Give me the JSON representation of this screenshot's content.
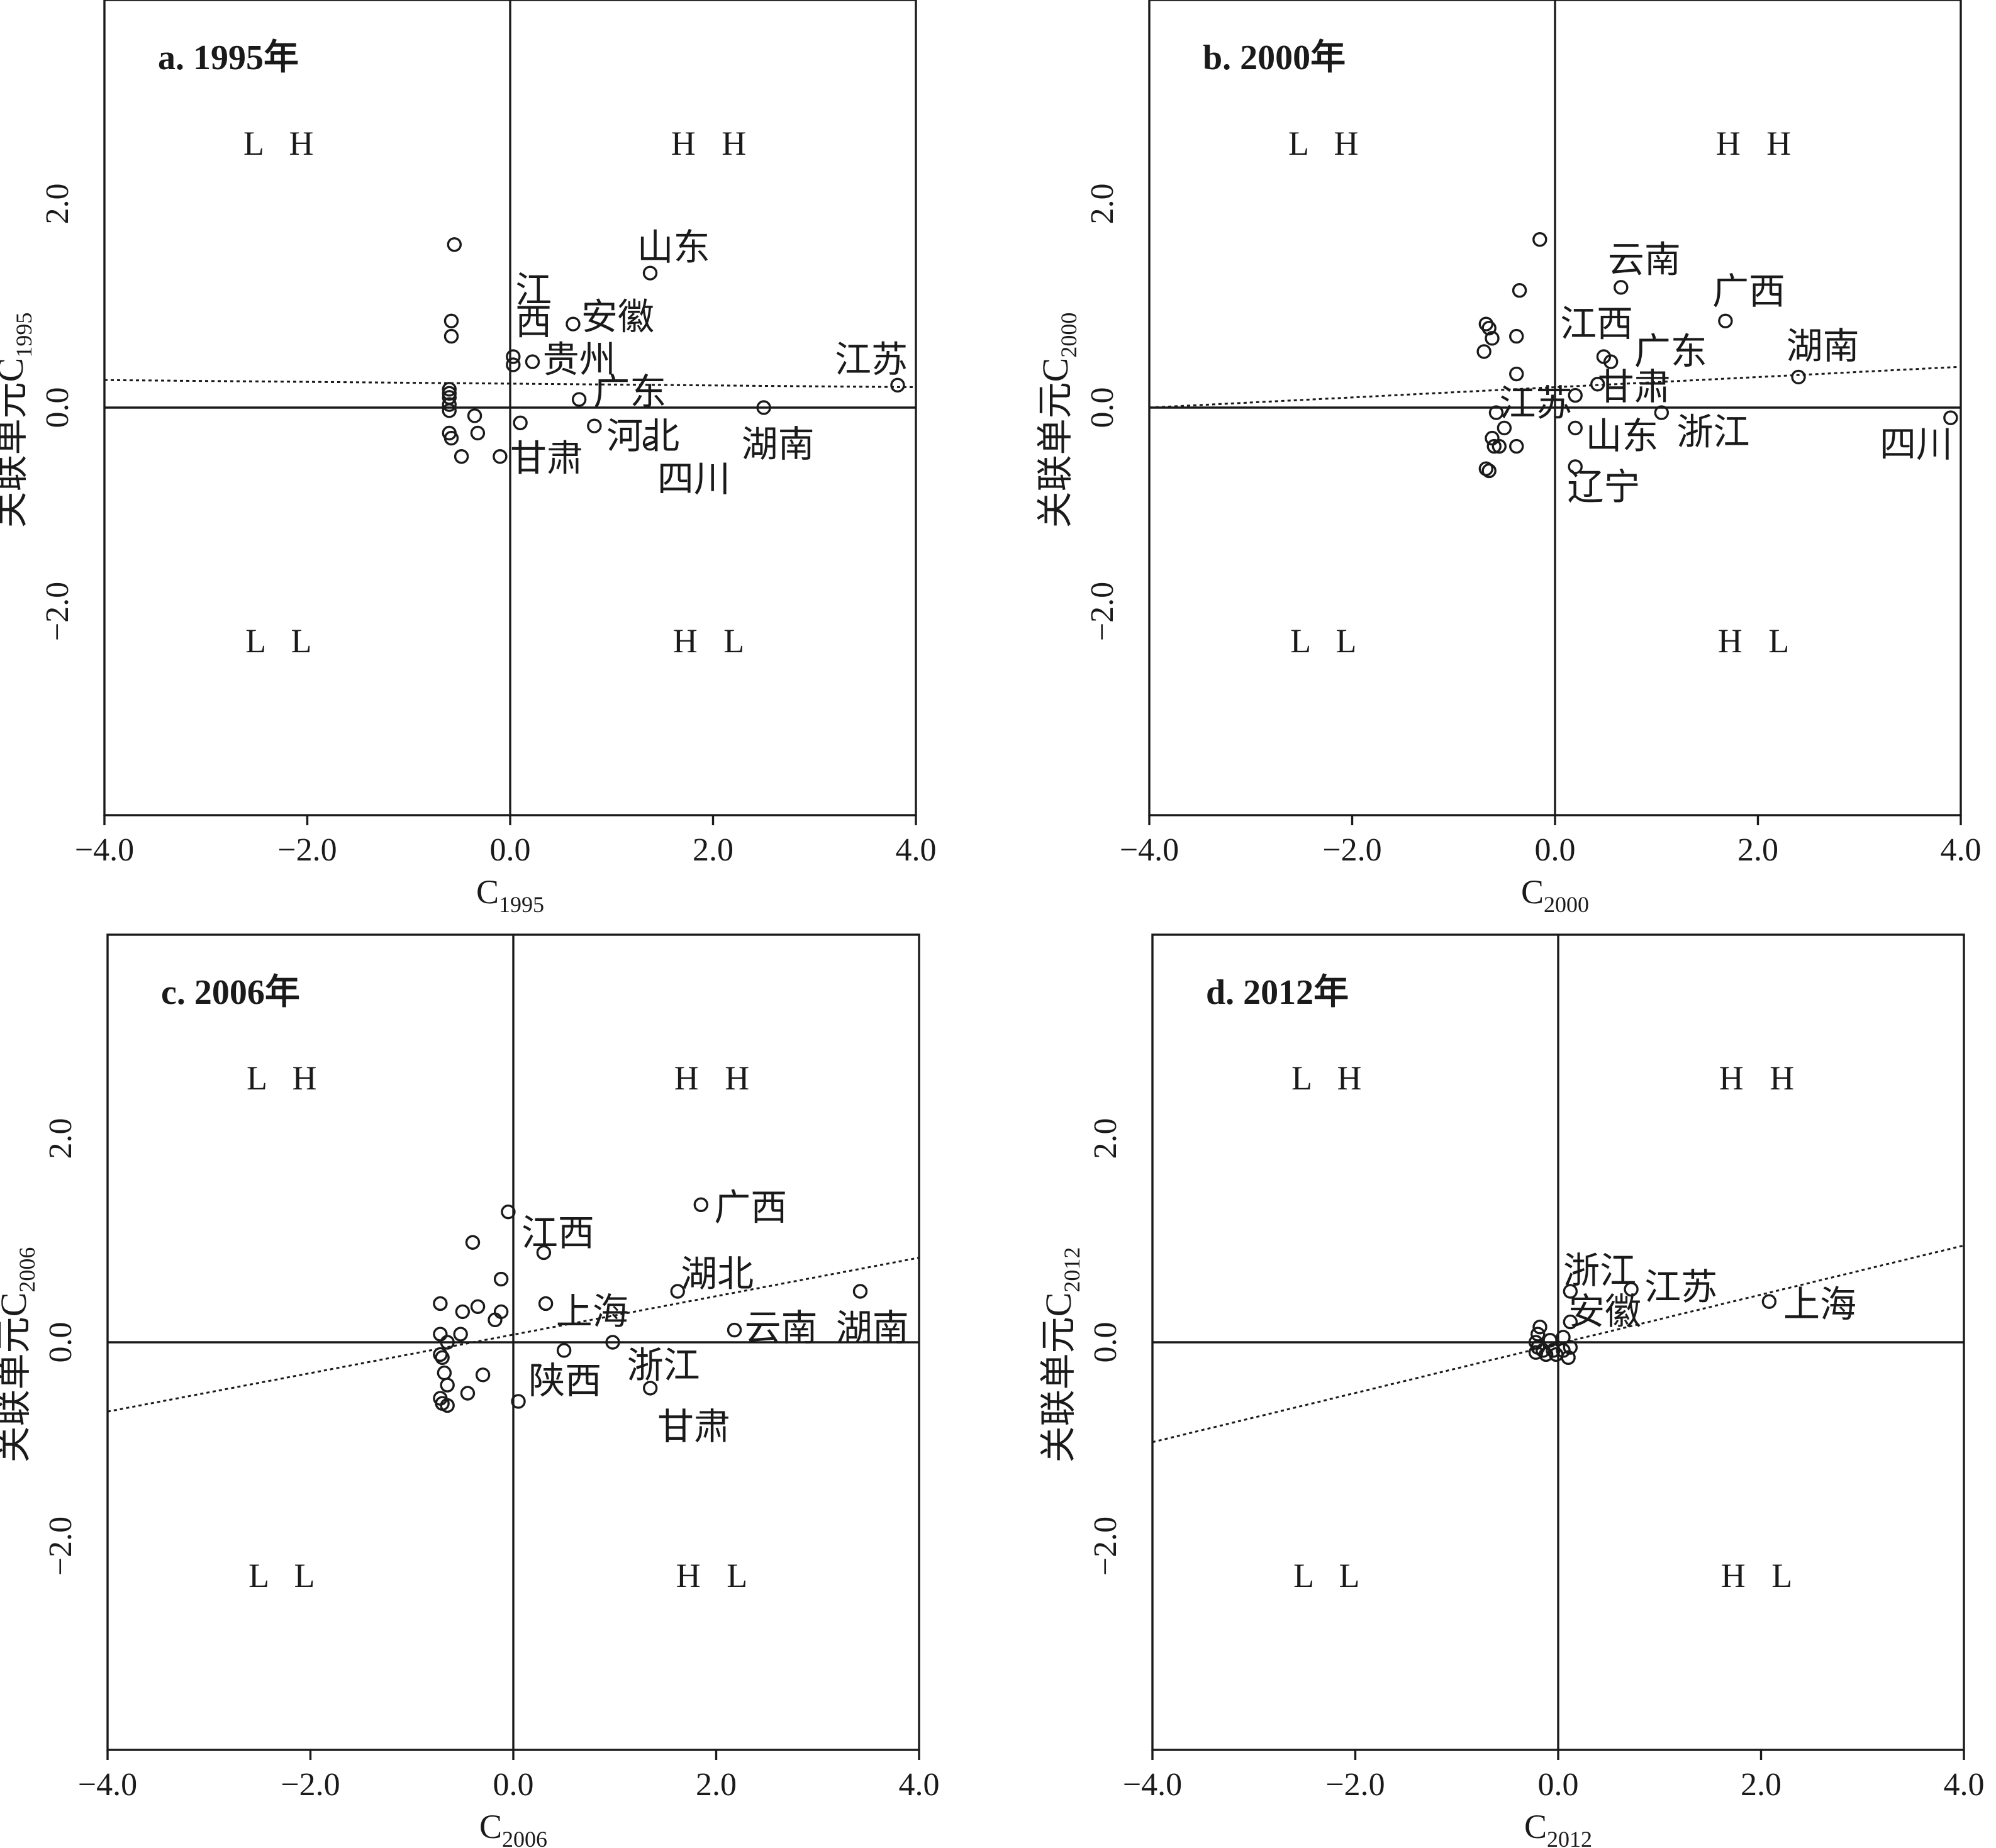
{
  "chart_data": [
    {
      "type": "scatter",
      "title": "a. 1995年",
      "xlabel": "C",
      "xlabel_sub": "1995",
      "ylabel": "关联单元C",
      "ylabel_sub": "1995",
      "xlim": [
        -4,
        4
      ],
      "ylim": [
        -4,
        4
      ],
      "xticks": [
        "−4.0",
        "−2.0",
        "0.0",
        "2.0",
        "4.0"
      ],
      "yticks": [
        "−2.0",
        "0.0",
        "2.0"
      ],
      "quadrants": {
        "LH": "L H",
        "HH": "H H",
        "LL": "L L",
        "HL": "H L"
      },
      "trendline": [
        [
          -4,
          0.27
        ],
        [
          4,
          0.2
        ]
      ],
      "points": [
        {
          "x": -0.55,
          "y": 1.6
        },
        {
          "x": -0.58,
          "y": 0.85
        },
        {
          "x": -0.58,
          "y": 0.7
        },
        {
          "x": -0.6,
          "y": 0.18
        },
        {
          "x": -0.6,
          "y": 0.14
        },
        {
          "x": -0.6,
          "y": 0.1
        },
        {
          "x": -0.6,
          "y": 0.03
        },
        {
          "x": -0.6,
          "y": -0.03
        },
        {
          "x": -0.6,
          "y": -0.25
        },
        {
          "x": -0.58,
          "y": -0.3
        },
        {
          "x": -0.35,
          "y": -0.08
        },
        {
          "x": -0.32,
          "y": -0.25
        },
        {
          "x": -0.48,
          "y": -0.48
        },
        {
          "x": -0.1,
          "y": -0.48
        },
        {
          "x": 0.03,
          "y": 0.5
        },
        {
          "x": 0.03,
          "y": 0.42
        },
        {
          "x": 0.1,
          "y": -0.15
        },
        {
          "x": 0.22,
          "y": 0.45,
          "label": "贵州"
        },
        {
          "x": 0.62,
          "y": 0.82,
          "label": "安徽"
        },
        {
          "x": 0.68,
          "y": 0.08,
          "label": "广东"
        },
        {
          "x": 0.83,
          "y": -0.18,
          "label": "河北"
        },
        {
          "x": 1.38,
          "y": 1.32,
          "label": "山东"
        },
        {
          "x": 1.38,
          "y": -0.35,
          "label": "四川"
        },
        {
          "x": 2.5,
          "y": 0.0,
          "label": "湖南"
        },
        {
          "x": 3.82,
          "y": 0.22,
          "label": "江苏"
        }
      ],
      "labels": [
        {
          "text": "山东",
          "x": 1.25,
          "y": 1.45
        },
        {
          "text": "江",
          "x": 0.05,
          "y": 1.03
        },
        {
          "text": "西",
          "x": 0.05,
          "y": 0.72
        },
        {
          "text": "安徽",
          "x": 0.7,
          "y": 0.77
        },
        {
          "text": "贵州",
          "x": 0.32,
          "y": 0.35
        },
        {
          "text": "江苏",
          "x": 3.2,
          "y": 0.35
        },
        {
          "text": "广东",
          "x": 0.82,
          "y": 0.03
        },
        {
          "text": "河北",
          "x": 0.95,
          "y": -0.4
        },
        {
          "text": "甘肃",
          "x": 0.0,
          "y": -0.62
        },
        {
          "text": "湖南",
          "x": 2.28,
          "y": -0.48
        },
        {
          "text": "四川",
          "x": 1.45,
          "y": -0.82
        }
      ]
    },
    {
      "type": "scatter",
      "title": "b. 2000年",
      "xlabel": "C",
      "xlabel_sub": "2000",
      "ylabel": "关联单元C",
      "ylabel_sub": "2000",
      "xlim": [
        -4,
        4
      ],
      "ylim": [
        -4,
        4
      ],
      "xticks": [
        "−4.0",
        "−2.0",
        "0.0",
        "2.0",
        "4.0"
      ],
      "yticks": [
        "−2.0",
        "0.0",
        "2.0"
      ],
      "quadrants": {
        "LH": "L H",
        "HH": "H H",
        "LL": "L L",
        "HL": "H L"
      },
      "trendline": [
        [
          -4,
          0.0
        ],
        [
          4,
          0.4
        ]
      ],
      "points": [
        {
          "x": -0.15,
          "y": 1.65
        },
        {
          "x": -0.35,
          "y": 1.15
        },
        {
          "x": -0.68,
          "y": 0.82
        },
        {
          "x": -0.65,
          "y": 0.78
        },
        {
          "x": -0.62,
          "y": 0.68
        },
        {
          "x": -0.7,
          "y": 0.55
        },
        {
          "x": -0.38,
          "y": 0.7
        },
        {
          "x": -0.38,
          "y": 0.33
        },
        {
          "x": -0.58,
          "y": -0.05
        },
        {
          "x": -0.5,
          "y": -0.2
        },
        {
          "x": -0.62,
          "y": -0.3
        },
        {
          "x": -0.6,
          "y": -0.38
        },
        {
          "x": -0.55,
          "y": -0.38
        },
        {
          "x": -0.68,
          "y": -0.6
        },
        {
          "x": -0.65,
          "y": -0.62
        },
        {
          "x": -0.38,
          "y": -0.38
        },
        {
          "x": 0.2,
          "y": -0.2
        },
        {
          "x": 0.2,
          "y": 0.12
        },
        {
          "x": 0.65,
          "y": 1.18,
          "label": "云南"
        },
        {
          "x": 1.68,
          "y": 0.85,
          "label": "广西"
        },
        {
          "x": 0.48,
          "y": 0.5,
          "label": "江西"
        },
        {
          "x": 0.55,
          "y": 0.45,
          "label": "广东"
        },
        {
          "x": 0.42,
          "y": 0.23,
          "label": "甘肃"
        },
        {
          "x": 1.05,
          "y": -0.05,
          "label": "浙江"
        },
        {
          "x": 0.2,
          "y": -0.58,
          "label": "辽宁"
        },
        {
          "x": 2.4,
          "y": 0.3,
          "label": "湖南"
        },
        {
          "x": 3.9,
          "y": -0.1,
          "label": "四川"
        }
      ],
      "labels": [
        {
          "text": "云南",
          "x": 0.52,
          "y": 1.33
        },
        {
          "text": "广西",
          "x": 1.55,
          "y": 1.02
        },
        {
          "text": "江西",
          "x": 0.05,
          "y": 0.7
        },
        {
          "text": "湖南",
          "x": 2.28,
          "y": 0.48
        },
        {
          "text": "广东",
          "x": 0.78,
          "y": 0.43
        },
        {
          "text": "甘肃",
          "x": 0.42,
          "y": 0.08
        },
        {
          "text": "江苏",
          "x": -0.55,
          "y": -0.08
        },
        {
          "text": "浙江",
          "x": 1.2,
          "y": -0.36
        },
        {
          "text": "山东",
          "x": 0.3,
          "y": -0.4
        },
        {
          "text": "四川",
          "x": 3.2,
          "y": -0.48
        },
        {
          "text": "辽宁",
          "x": 0.12,
          "y": -0.9
        }
      ]
    },
    {
      "type": "scatter",
      "title": "c. 2006年",
      "xlabel": "C",
      "xlabel_sub": "2006",
      "ylabel": "关联单元C",
      "ylabel_sub": "2006",
      "xlim": [
        -4,
        4
      ],
      "ylim": [
        -4,
        4
      ],
      "xticks": [
        "−4.0",
        "−2.0",
        "0.0",
        "2.0",
        "4.0"
      ],
      "yticks": [
        "−2.0",
        "0.0",
        "2.0"
      ],
      "quadrants": {
        "LH": "L H",
        "HH": "H H",
        "LL": "L L",
        "HL": "H L"
      },
      "trendline": [
        [
          -4,
          -0.68
        ],
        [
          4,
          0.83
        ]
      ],
      "points": [
        {
          "x": -0.05,
          "y": 1.28
        },
        {
          "x": -0.4,
          "y": 0.98
        },
        {
          "x": -0.12,
          "y": 0.62
        },
        {
          "x": -0.72,
          "y": 0.38
        },
        {
          "x": -0.35,
          "y": 0.35
        },
        {
          "x": -0.5,
          "y": 0.3
        },
        {
          "x": -0.12,
          "y": 0.3
        },
        {
          "x": -0.18,
          "y": 0.22
        },
        {
          "x": -0.72,
          "y": 0.08
        },
        {
          "x": -0.52,
          "y": 0.08
        },
        {
          "x": -0.65,
          "y": 0.0
        },
        {
          "x": -0.7,
          "y": -0.15
        },
        {
          "x": -0.72,
          "y": -0.12
        },
        {
          "x": -0.68,
          "y": -0.3
        },
        {
          "x": -0.3,
          "y": -0.32
        },
        {
          "x": -0.65,
          "y": -0.42
        },
        {
          "x": -0.45,
          "y": -0.5
        },
        {
          "x": -0.72,
          "y": -0.55
        },
        {
          "x": -0.7,
          "y": -0.6
        },
        {
          "x": -0.65,
          "y": -0.62
        },
        {
          "x": 0.05,
          "y": -0.58
        },
        {
          "x": 0.3,
          "y": 0.88,
          "label": "江西"
        },
        {
          "x": 0.32,
          "y": 0.38,
          "label": "上海"
        },
        {
          "x": 0.5,
          "y": -0.08,
          "label": "陕西"
        },
        {
          "x": 0.98,
          "y": 0.0,
          "label": "浙江"
        },
        {
          "x": 1.35,
          "y": -0.45,
          "label": "甘肃"
        },
        {
          "x": 1.62,
          "y": 0.5,
          "label": "湖北"
        },
        {
          "x": 1.85,
          "y": 1.35,
          "label": "广西"
        },
        {
          "x": 2.18,
          "y": 0.12,
          "label": "云南"
        },
        {
          "x": 3.42,
          "y": 0.5,
          "label": "湖南"
        }
      ],
      "labels": [
        {
          "text": "广西",
          "x": 1.98,
          "y": 1.2
        },
        {
          "text": "江西",
          "x": 0.08,
          "y": 0.95
        },
        {
          "text": "湖北",
          "x": 1.65,
          "y": 0.55
        },
        {
          "text": "上海",
          "x": 0.42,
          "y": 0.18
        },
        {
          "text": "云南",
          "x": 2.28,
          "y": 0.02
        },
        {
          "text": "湖南",
          "x": 3.18,
          "y": 0.02
        },
        {
          "text": "浙江",
          "x": 1.12,
          "y": -0.35
        },
        {
          "text": "陕西",
          "x": 0.15,
          "y": -0.5
        },
        {
          "text": "甘肃",
          "x": 1.42,
          "y": -0.95
        }
      ]
    },
    {
      "type": "scatter",
      "title": "d. 2012年",
      "xlabel": "C",
      "xlabel_sub": "2012",
      "ylabel": "关联单元C",
      "ylabel_sub": "2012",
      "xlim": [
        -4,
        4
      ],
      "ylim": [
        -4,
        4
      ],
      "xticks": [
        "−4.0",
        "−2.0",
        "0.0",
        "2.0",
        "4.0"
      ],
      "yticks": [
        "−2.0",
        "0.0",
        "2.0"
      ],
      "quadrants": {
        "LH": "L H",
        "HH": "H H",
        "LL": "L L",
        "HL": "H L"
      },
      "trendline": [
        [
          -4,
          -0.98
        ],
        [
          4,
          0.95
        ]
      ],
      "points": [
        {
          "x": -0.2,
          "y": 0.08
        },
        {
          "x": -0.18,
          "y": 0.15
        },
        {
          "x": -0.22,
          "y": 0.0
        },
        {
          "x": -0.2,
          "y": -0.05
        },
        {
          "x": -0.15,
          "y": -0.08
        },
        {
          "x": -0.22,
          "y": -0.1
        },
        {
          "x": -0.12,
          "y": -0.12
        },
        {
          "x": -0.05,
          "y": -0.08
        },
        {
          "x": -0.02,
          "y": -0.12
        },
        {
          "x": 0.05,
          "y": -0.08
        },
        {
          "x": 0.1,
          "y": -0.15
        },
        {
          "x": 0.05,
          "y": 0.05
        },
        {
          "x": 0.12,
          "y": -0.05
        },
        {
          "x": -0.08,
          "y": 0.02
        },
        {
          "x": 0.12,
          "y": 0.5,
          "label": "浙江"
        },
        {
          "x": 0.12,
          "y": 0.2,
          "label": "安徽"
        },
        {
          "x": 0.72,
          "y": 0.52,
          "label": "江苏"
        },
        {
          "x": 2.08,
          "y": 0.4,
          "label": "上海"
        }
      ],
      "labels": [
        {
          "text": "浙江",
          "x": 0.05,
          "y": 0.58
        },
        {
          "text": "江苏",
          "x": 0.85,
          "y": 0.42
        },
        {
          "text": "安徽",
          "x": 0.1,
          "y": 0.18
        },
        {
          "text": "上海",
          "x": 2.22,
          "y": 0.25
        }
      ]
    }
  ]
}
